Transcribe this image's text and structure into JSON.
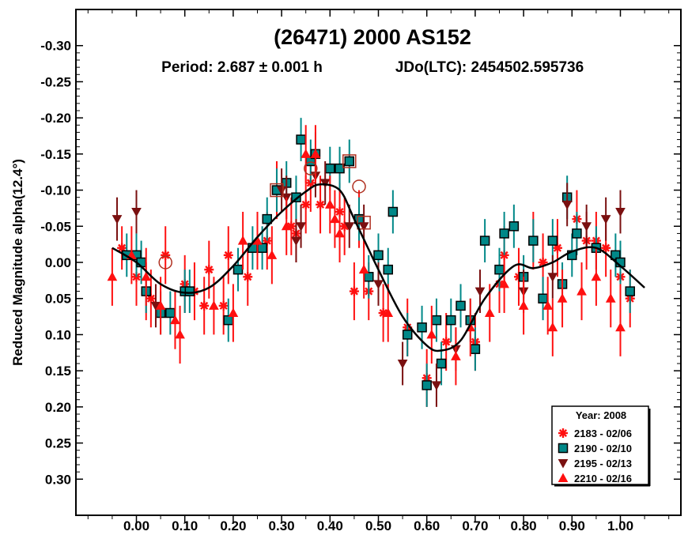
{
  "chart_data": {
    "type": "scatter",
    "title": "(26471) 2000 AS152",
    "subtitle_period": "Period: 2.687 ± 0.001 h",
    "subtitle_epoch": "JDo(LTC): 2454502.595736",
    "xlabel": "",
    "ylabel": "Reduced Magnitude alpha(12.4°)",
    "xlim": [
      -0.125,
      1.125
    ],
    "ylim": [
      -0.35,
      0.35
    ],
    "y_inverted": true,
    "x_ticks": [
      0.0,
      0.1,
      0.2,
      0.3,
      0.4,
      0.5,
      0.6,
      0.7,
      0.8,
      0.9,
      1.0
    ],
    "x_tick_labels": [
      "0.00",
      "0.10",
      "0.20",
      "0.30",
      "0.40",
      "0.50",
      "0.60",
      "0.70",
      "0.80",
      "0.90",
      "1.00"
    ],
    "y_ticks": [
      -0.3,
      -0.25,
      -0.2,
      -0.15,
      -0.1,
      -0.05,
      0.0,
      0.05,
      0.1,
      0.15,
      0.2,
      0.25,
      0.3
    ],
    "y_tick_labels": [
      "-0.30",
      "-0.25",
      "-0.20",
      "-0.15",
      "-0.10",
      "-0.05",
      "0.00",
      "0.05",
      "0.10",
      "0.15",
      "0.20",
      "0.25",
      "0.30"
    ],
    "legend_title": "Year: 2008",
    "legend_position": "bottom-right",
    "fit_curve": [
      [
        -0.05,
        -0.02
      ],
      [
        0.0,
        0.0
      ],
      [
        0.05,
        0.03
      ],
      [
        0.1,
        0.042
      ],
      [
        0.15,
        0.035
      ],
      [
        0.2,
        0.005
      ],
      [
        0.25,
        -0.035
      ],
      [
        0.3,
        -0.07
      ],
      [
        0.35,
        -0.098
      ],
      [
        0.38,
        -0.108
      ],
      [
        0.42,
        -0.1
      ],
      [
        0.45,
        -0.06
      ],
      [
        0.5,
        0.01
      ],
      [
        0.55,
        0.075
      ],
      [
        0.6,
        0.115
      ],
      [
        0.63,
        0.122
      ],
      [
        0.67,
        0.108
      ],
      [
        0.72,
        0.05
      ],
      [
        0.78,
        0.005
      ],
      [
        0.82,
        0.008
      ],
      [
        0.86,
        0.0
      ],
      [
        0.9,
        -0.015
      ],
      [
        0.95,
        -0.02
      ],
      [
        1.0,
        0.005
      ],
      [
        1.05,
        0.035
      ]
    ],
    "series": [
      {
        "name": "2183 - 02/06",
        "marker": "asterisk",
        "color": "#ff1010",
        "points": [
          [
            -0.03,
            -0.02,
            0.03
          ],
          [
            0.0,
            0.02,
            0.04
          ],
          [
            0.02,
            0.04,
            0.04
          ],
          [
            0.03,
            0.05,
            0.04
          ],
          [
            0.06,
            -0.01,
            0.04
          ],
          [
            0.1,
            0.03,
            0.04
          ],
          [
            0.12,
            0.04,
            0.04
          ],
          [
            0.14,
            0.06,
            0.04
          ],
          [
            0.15,
            0.01,
            0.04
          ],
          [
            0.18,
            0.06,
            0.04
          ],
          [
            0.19,
            -0.01,
            0.04
          ],
          [
            0.23,
            0.02,
            0.04
          ],
          [
            0.27,
            -0.03,
            0.04
          ],
          [
            0.29,
            -0.1,
            0.04
          ],
          [
            0.32,
            -0.05,
            0.04
          ],
          [
            0.33,
            -0.04,
            0.04
          ],
          [
            0.35,
            -0.08,
            0.04
          ],
          [
            0.36,
            -0.11,
            0.04
          ],
          [
            0.38,
            -0.08,
            0.04
          ],
          [
            0.42,
            -0.07,
            0.04
          ],
          [
            0.43,
            -0.05,
            0.04
          ],
          [
            0.45,
            0.04,
            0.04
          ],
          [
            0.46,
            -0.06,
            0.04
          ],
          [
            0.48,
            0.04,
            0.04
          ],
          [
            0.51,
            0.07,
            0.04
          ],
          [
            0.56,
            0.09,
            0.04
          ],
          [
            0.6,
            0.16,
            0.04
          ],
          [
            0.64,
            0.11,
            0.04
          ],
          [
            0.7,
            0.11,
            0.04
          ],
          [
            0.75,
            0.03,
            0.04
          ],
          [
            0.76,
            -0.01,
            0.04
          ],
          [
            0.79,
            0.02,
            0.04
          ],
          [
            0.82,
            -0.03,
            0.04
          ],
          [
            0.84,
            0.0,
            0.04
          ],
          [
            0.87,
            -0.02,
            0.04
          ],
          [
            0.91,
            -0.06,
            0.04
          ],
          [
            0.93,
            -0.03,
            0.04
          ],
          [
            0.95,
            -0.03,
            0.04
          ],
          [
            0.97,
            -0.02,
            0.04
          ],
          [
            1.0,
            0.02,
            0.04
          ],
          [
            1.02,
            0.05,
            0.04
          ]
        ]
      },
      {
        "name": "2190 - 02/10",
        "marker": "square",
        "color": "#008888",
        "points": [
          [
            -0.02,
            -0.01,
            0.03
          ],
          [
            0.0,
            -0.01,
            0.03
          ],
          [
            0.01,
            0.0,
            0.03
          ],
          [
            0.02,
            0.04,
            0.03
          ],
          [
            0.05,
            0.07,
            0.03
          ],
          [
            0.07,
            0.07,
            0.03
          ],
          [
            0.1,
            0.04,
            0.03
          ],
          [
            0.11,
            0.04,
            0.03
          ],
          [
            0.19,
            0.08,
            0.03
          ],
          [
            0.21,
            0.01,
            0.03
          ],
          [
            0.24,
            -0.02,
            0.03
          ],
          [
            0.26,
            -0.02,
            0.03
          ],
          [
            0.27,
            -0.06,
            0.03
          ],
          [
            0.29,
            -0.1,
            0.03
          ],
          [
            0.31,
            -0.11,
            0.03
          ],
          [
            0.33,
            -0.09,
            0.03
          ],
          [
            0.34,
            -0.17,
            0.03
          ],
          [
            0.36,
            -0.14,
            0.03
          ],
          [
            0.37,
            -0.15,
            0.03
          ],
          [
            0.4,
            -0.13,
            0.03
          ],
          [
            0.42,
            -0.13,
            0.03
          ],
          [
            0.44,
            -0.14,
            0.03
          ],
          [
            0.46,
            -0.06,
            0.03
          ],
          [
            0.48,
            0.02,
            0.03
          ],
          [
            0.5,
            -0.01,
            0.03
          ],
          [
            0.52,
            0.01,
            0.03
          ],
          [
            0.53,
            -0.07,
            0.03
          ],
          [
            0.56,
            0.1,
            0.03
          ],
          [
            0.59,
            0.09,
            0.03
          ],
          [
            0.6,
            0.17,
            0.03
          ],
          [
            0.62,
            0.08,
            0.03
          ],
          [
            0.63,
            0.14,
            0.03
          ],
          [
            0.65,
            0.08,
            0.03
          ],
          [
            0.67,
            0.06,
            0.03
          ],
          [
            0.69,
            0.08,
            0.03
          ],
          [
            0.7,
            0.12,
            0.03
          ],
          [
            0.72,
            -0.03,
            0.03
          ],
          [
            0.75,
            0.01,
            0.03
          ],
          [
            0.76,
            -0.04,
            0.03
          ],
          [
            0.78,
            -0.05,
            0.03
          ],
          [
            0.8,
            0.02,
            0.03
          ],
          [
            0.82,
            -0.03,
            0.03
          ],
          [
            0.84,
            0.05,
            0.03
          ],
          [
            0.86,
            -0.03,
            0.03
          ],
          [
            0.88,
            0.03,
            0.03
          ],
          [
            0.89,
            -0.09,
            0.03
          ],
          [
            0.9,
            -0.01,
            0.03
          ],
          [
            0.91,
            -0.04,
            0.03
          ],
          [
            0.95,
            -0.02,
            0.03
          ],
          [
            0.99,
            -0.01,
            0.03
          ],
          [
            1.0,
            0.0,
            0.03
          ],
          [
            1.02,
            0.04,
            0.03
          ]
        ]
      },
      {
        "name": "2195 - 02/13",
        "marker": "triangle-down",
        "color": "#7a1010",
        "points": [
          [
            -0.04,
            -0.06,
            0.03
          ],
          [
            0.0,
            -0.07,
            0.03
          ],
          [
            0.04,
            0.06,
            0.03
          ],
          [
            0.3,
            -0.1,
            0.03
          ],
          [
            0.31,
            -0.09,
            0.03
          ],
          [
            0.33,
            -0.03,
            0.03
          ],
          [
            0.34,
            -0.05,
            0.03
          ],
          [
            0.37,
            -0.12,
            0.03
          ],
          [
            0.39,
            -0.11,
            0.03
          ],
          [
            0.44,
            -0.05,
            0.03
          ],
          [
            0.47,
            -0.05,
            0.03
          ],
          [
            0.5,
            0.03,
            0.03
          ],
          [
            0.55,
            0.14,
            0.03
          ],
          [
            0.62,
            0.17,
            0.03
          ],
          [
            0.66,
            0.12,
            0.03
          ],
          [
            0.71,
            0.04,
            0.03
          ],
          [
            0.8,
            0.04,
            0.03
          ],
          [
            0.86,
            0.02,
            0.03
          ],
          [
            0.89,
            -0.08,
            0.03
          ],
          [
            0.93,
            -0.05,
            0.03
          ],
          [
            0.97,
            -0.06,
            0.03
          ],
          [
            1.0,
            -0.07,
            0.03
          ]
        ]
      },
      {
        "name": "2210 - 02/16",
        "marker": "triangle-up",
        "color": "#ff1010",
        "points": [
          [
            -0.05,
            0.02,
            0.04
          ],
          [
            -0.01,
            -0.01,
            0.04
          ],
          [
            0.02,
            0.02,
            0.04
          ],
          [
            0.05,
            0.06,
            0.04
          ],
          [
            0.08,
            0.08,
            0.04
          ],
          [
            0.09,
            0.1,
            0.04
          ],
          [
            0.16,
            0.06,
            0.04
          ],
          [
            0.2,
            0.07,
            0.04
          ],
          [
            0.22,
            -0.03,
            0.04
          ],
          [
            0.25,
            -0.03,
            0.04
          ],
          [
            0.28,
            -0.01,
            0.04
          ],
          [
            0.31,
            -0.05,
            0.04
          ],
          [
            0.35,
            -0.15,
            0.04
          ],
          [
            0.37,
            -0.15,
            0.04
          ],
          [
            0.4,
            -0.08,
            0.04
          ],
          [
            0.41,
            -0.06,
            0.04
          ],
          [
            0.42,
            -0.04,
            0.04
          ],
          [
            0.47,
            0.01,
            0.04
          ],
          [
            0.52,
            0.07,
            0.04
          ],
          [
            0.61,
            0.1,
            0.04
          ],
          [
            0.66,
            0.13,
            0.04
          ],
          [
            0.69,
            0.09,
            0.04
          ],
          [
            0.73,
            0.07,
            0.04
          ],
          [
            0.76,
            0.03,
            0.04
          ],
          [
            0.8,
            0.06,
            0.04
          ],
          [
            0.85,
            0.06,
            0.04
          ],
          [
            0.86,
            0.09,
            0.04
          ],
          [
            0.88,
            0.05,
            0.04
          ],
          [
            0.92,
            0.04,
            0.04
          ],
          [
            0.95,
            0.02,
            0.04
          ],
          [
            0.98,
            0.05,
            0.04
          ],
          [
            1.0,
            0.09,
            0.04
          ]
        ]
      }
    ],
    "highlighted_points": [
      [
        0.06,
        0.0
      ],
      [
        0.29,
        -0.1
      ],
      [
        0.36,
        -0.13
      ],
      [
        0.44,
        -0.14
      ],
      [
        0.46,
        -0.105
      ],
      [
        0.47,
        -0.055
      ]
    ]
  }
}
